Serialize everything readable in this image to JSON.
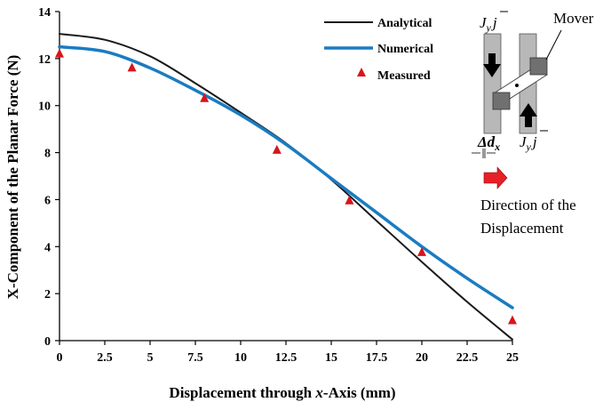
{
  "chart_data": {
    "type": "line",
    "xlabel_prefix": "Displacement through ",
    "xlabel_var": "x",
    "xlabel_suffix": "-Axis (mm)",
    "ylabel": "X-Component of the Planar Force (N)",
    "xlim": [
      0,
      25
    ],
    "ylim": [
      0,
      14
    ],
    "x_ticks": [
      "0",
      "2.5",
      "5",
      "7.5",
      "10",
      "12.5",
      "15",
      "17.5",
      "20",
      "22.5",
      "25"
    ],
    "y_ticks": [
      "0",
      "2",
      "4",
      "6",
      "8",
      "10",
      "12",
      "14"
    ],
    "legend_position": "top-right",
    "series": [
      {
        "name": "Analytical",
        "style": "line",
        "color": "#1a1a1a",
        "x": [
          0,
          2.5,
          5,
          7.5,
          10,
          12.5,
          15,
          17.5,
          20,
          22.5,
          25
        ],
        "y": [
          13.05,
          12.8,
          12.1,
          10.95,
          9.7,
          8.4,
          6.85,
          5.1,
          3.35,
          1.65,
          0.05
        ]
      },
      {
        "name": "Numerical",
        "style": "line",
        "color": "#1a7cc1",
        "x": [
          0,
          2.5,
          5,
          7.5,
          10,
          12.5,
          15,
          17.5,
          20,
          22.5,
          25
        ],
        "y": [
          12.5,
          12.3,
          11.6,
          10.65,
          9.6,
          8.35,
          6.9,
          5.45,
          4.0,
          2.65,
          1.4
        ]
      },
      {
        "name": "Measured",
        "style": "marker",
        "marker": "triangle",
        "color": "#d9141b",
        "x": [
          0,
          4,
          8,
          12,
          16,
          20,
          25
        ],
        "y": [
          12.2,
          11.6,
          10.3,
          8.1,
          5.95,
          3.75,
          0.85
        ]
      }
    ]
  },
  "inset": {
    "mover_label": "Mover",
    "current_symbol": "J",
    "current_subscript": "y",
    "current_vector": "j",
    "gap_delta": "Δ",
    "gap_var": "d",
    "gap_subscript": "x",
    "direction_line1": "Direction of the",
    "direction_line2": "Displacement",
    "arrow_color": "#e81f27",
    "bar_color": "#b8b8b8",
    "block_color": "#707070"
  }
}
